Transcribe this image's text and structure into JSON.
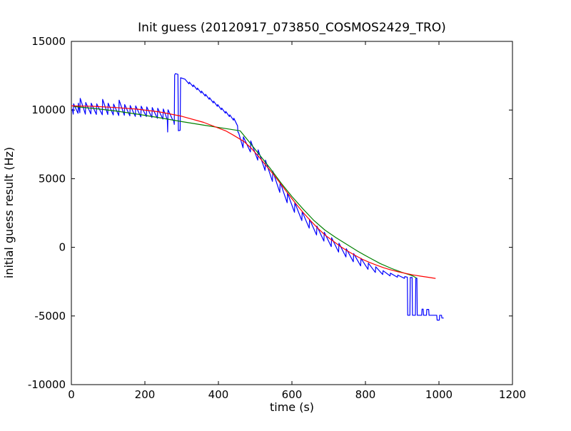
{
  "chart_data": {
    "type": "line",
    "title": "Init guess (20120917_073850_COSMOS2429_TRO)",
    "xlabel": "time (s)",
    "ylabel": "initial guess result (Hz)",
    "xlim": [
      0,
      1200
    ],
    "ylim": [
      -10000,
      15000
    ],
    "xticks": [
      0,
      200,
      400,
      600,
      800,
      1000,
      1200
    ],
    "yticks": [
      -10000,
      -5000,
      0,
      5000,
      10000,
      15000
    ],
    "xtick_labels": [
      "0",
      "200",
      "400",
      "600",
      "800",
      "1000",
      "1200"
    ],
    "ytick_labels": [
      "-10000",
      "-5000",
      "0",
      "5000",
      "10000",
      "15000"
    ],
    "grid": false,
    "legend": "none",
    "background_color": "#ffffff",
    "axes_color": "#000000",
    "tick_direction": "in",
    "series": [
      {
        "name": "measured-data",
        "color": "#0000ff",
        "points": [
          [
            3,
            10050
          ],
          [
            5,
            9700
          ],
          [
            6,
            10450
          ],
          [
            18,
            9760
          ],
          [
            19,
            10500
          ],
          [
            23,
            9800
          ],
          [
            24,
            10850
          ],
          [
            38,
            9700
          ],
          [
            39,
            10550
          ],
          [
            53,
            9720
          ],
          [
            54,
            10500
          ],
          [
            68,
            9680
          ],
          [
            69,
            10450
          ],
          [
            84,
            9650
          ],
          [
            85,
            10780
          ],
          [
            99,
            9680
          ],
          [
            100,
            10500
          ],
          [
            114,
            9640
          ],
          [
            115,
            10430
          ],
          [
            129,
            9600
          ],
          [
            130,
            10720
          ],
          [
            144,
            9620
          ],
          [
            145,
            10400
          ],
          [
            159,
            9580
          ],
          [
            160,
            10330
          ],
          [
            174,
            9540
          ],
          [
            175,
            10300
          ],
          [
            189,
            9500
          ],
          [
            190,
            10280
          ],
          [
            204,
            9520
          ],
          [
            205,
            10230
          ],
          [
            219,
            9450
          ],
          [
            220,
            10180
          ],
          [
            234,
            9400
          ],
          [
            235,
            10130
          ],
          [
            249,
            9340
          ],
          [
            250,
            10080
          ],
          [
            261,
            9300
          ],
          [
            262,
            8400
          ],
          [
            263,
            10020
          ],
          [
            276,
            9260
          ],
          [
            278,
            9250
          ],
          [
            280,
            8950
          ],
          [
            281,
            12550
          ],
          [
            283,
            12650
          ],
          [
            290,
            12600
          ],
          [
            291,
            8500
          ],
          [
            296,
            8520
          ],
          [
            297,
            12350
          ],
          [
            309,
            12250
          ],
          [
            320,
            11900
          ],
          [
            321,
            12030
          ],
          [
            331,
            11700
          ],
          [
            332,
            11830
          ],
          [
            342,
            11480
          ],
          [
            343,
            11600
          ],
          [
            353,
            11250
          ],
          [
            354,
            11380
          ],
          [
            364,
            11020
          ],
          [
            365,
            11150
          ],
          [
            375,
            10780
          ],
          [
            376,
            10900
          ],
          [
            386,
            10520
          ],
          [
            387,
            10650
          ],
          [
            397,
            10270
          ],
          [
            398,
            10400
          ],
          [
            408,
            10020
          ],
          [
            409,
            10150
          ],
          [
            419,
            9770
          ],
          [
            420,
            9900
          ],
          [
            430,
            9520
          ],
          [
            431,
            9650
          ],
          [
            441,
            9260
          ],
          [
            442,
            9400
          ],
          [
            452,
            8850
          ],
          [
            453,
            8400
          ],
          [
            455,
            8350
          ],
          [
            467,
            7250
          ],
          [
            468,
            8050
          ],
          [
            487,
            6950
          ],
          [
            488,
            7750
          ],
          [
            507,
            6350
          ],
          [
            508,
            7100
          ],
          [
            527,
            5600
          ],
          [
            528,
            6350
          ],
          [
            547,
            4800
          ],
          [
            548,
            5550
          ],
          [
            567,
            4000
          ],
          [
            568,
            4750
          ],
          [
            587,
            3250
          ],
          [
            588,
            3950
          ],
          [
            607,
            2550
          ],
          [
            608,
            3250
          ],
          [
            627,
            1950
          ],
          [
            628,
            2600
          ],
          [
            647,
            1400
          ],
          [
            648,
            2050
          ],
          [
            667,
            900
          ],
          [
            668,
            1550
          ],
          [
            687,
            450
          ],
          [
            688,
            1100
          ],
          [
            707,
            50
          ],
          [
            708,
            700
          ],
          [
            727,
            -350
          ],
          [
            728,
            300
          ],
          [
            747,
            -700
          ],
          [
            748,
            -100
          ],
          [
            767,
            -1050
          ],
          [
            768,
            -450
          ],
          [
            787,
            -1350
          ],
          [
            788,
            -800
          ],
          [
            807,
            -1600
          ],
          [
            808,
            -1150
          ],
          [
            827,
            -1830
          ],
          [
            828,
            -1420
          ],
          [
            847,
            -1980
          ],
          [
            848,
            -1700
          ],
          [
            867,
            -2080
          ],
          [
            868,
            -1880
          ],
          [
            887,
            -2180
          ],
          [
            888,
            -2020
          ],
          [
            906,
            -2260
          ],
          [
            907,
            -2130
          ],
          [
            914,
            -2180
          ],
          [
            915,
            -4950
          ],
          [
            921,
            -4950
          ],
          [
            922,
            -2200
          ],
          [
            927,
            -2200
          ],
          [
            928,
            -4950
          ],
          [
            936,
            -4950
          ],
          [
            937,
            -2250
          ],
          [
            940,
            -2250
          ],
          [
            941,
            -4950
          ],
          [
            953,
            -4950
          ],
          [
            954,
            -4500
          ],
          [
            957,
            -4500
          ],
          [
            958,
            -4950
          ],
          [
            966,
            -4950
          ],
          [
            967,
            -4520
          ],
          [
            972,
            -4520
          ],
          [
            973,
            -4950
          ],
          [
            994,
            -4950
          ],
          [
            995,
            -5300
          ],
          [
            1001,
            -5300
          ],
          [
            1002,
            -4950
          ],
          [
            1007,
            -4950
          ],
          [
            1008,
            -5150
          ],
          [
            1012,
            -5150
          ]
        ]
      },
      {
        "name": "model-fit-green",
        "color": "#008000",
        "points": [
          [
            8,
            10250
          ],
          [
            60,
            10120
          ],
          [
            120,
            9930
          ],
          [
            180,
            9700
          ],
          [
            240,
            9440
          ],
          [
            300,
            9160
          ],
          [
            360,
            8900
          ],
          [
            420,
            8650
          ],
          [
            459,
            8490
          ],
          [
            480,
            7800
          ],
          [
            510,
            6800
          ],
          [
            540,
            5780
          ],
          [
            570,
            4700
          ],
          [
            600,
            3700
          ],
          [
            630,
            2800
          ],
          [
            660,
            1950
          ],
          [
            690,
            1250
          ],
          [
            720,
            700
          ],
          [
            750,
            200
          ],
          [
            780,
            -300
          ],
          [
            810,
            -750
          ],
          [
            840,
            -1180
          ],
          [
            870,
            -1530
          ],
          [
            900,
            -1830
          ],
          [
            920,
            -2000
          ],
          [
            930,
            -2100
          ],
          [
            938,
            -2230
          ]
        ]
      },
      {
        "name": "model-fit-red",
        "color": "#ff0000",
        "points": [
          [
            0,
            10300
          ],
          [
            60,
            10270
          ],
          [
            120,
            10180
          ],
          [
            180,
            10060
          ],
          [
            240,
            9860
          ],
          [
            300,
            9550
          ],
          [
            360,
            9100
          ],
          [
            420,
            8480
          ],
          [
            440,
            8180
          ],
          [
            470,
            7700
          ],
          [
            490,
            7200
          ],
          [
            510,
            6600
          ],
          [
            530,
            5950
          ],
          [
            550,
            5300
          ],
          [
            570,
            4600
          ],
          [
            590,
            3900
          ],
          [
            610,
            3200
          ],
          [
            630,
            2550
          ],
          [
            650,
            1950
          ],
          [
            670,
            1400
          ],
          [
            690,
            900
          ],
          [
            710,
            500
          ],
          [
            730,
            100
          ],
          [
            750,
            -250
          ],
          [
            770,
            -560
          ],
          [
            790,
            -850
          ],
          [
            810,
            -1090
          ],
          [
            830,
            -1300
          ],
          [
            850,
            -1490
          ],
          [
            870,
            -1650
          ],
          [
            890,
            -1790
          ],
          [
            910,
            -1900
          ],
          [
            930,
            -2010
          ],
          [
            950,
            -2100
          ],
          [
            970,
            -2180
          ],
          [
            990,
            -2260
          ]
        ]
      }
    ]
  }
}
